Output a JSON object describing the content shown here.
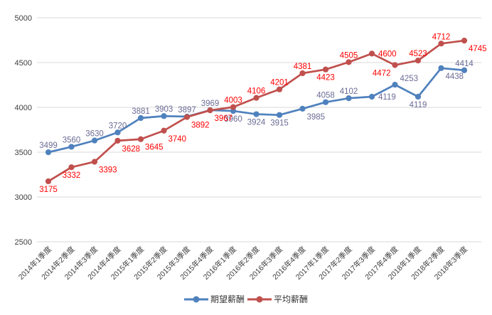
{
  "chart_data": {
    "type": "line",
    "title": "",
    "categories": [
      "2014年1季度",
      "2014年2季度",
      "2014年3季度",
      "2014年4季度",
      "2015年1季度",
      "2015年2季度",
      "2015年3季度",
      "2015年4季度",
      "2016年1季度",
      "2016年2季度",
      "2016年3季度",
      "2016年4季度",
      "2017年1季度",
      "2017年2季度",
      "2017年3季度",
      "2017年4季度",
      "2018年1季度",
      "2018年2季度",
      "2018年3季度"
    ],
    "series": [
      {
        "name": "期望薪酬",
        "color": "#4F81BD",
        "label_color": "#6B6B96",
        "values": [
          3499,
          3560,
          3630,
          3720,
          3881,
          3903,
          3897,
          3969,
          3960,
          3924,
          3915,
          3985,
          4058,
          4102,
          4119,
          4253,
          4119,
          4438,
          4414
        ],
        "label_pos": [
          "above",
          "above",
          "above",
          "above",
          "above",
          "above",
          "above",
          "above",
          "below",
          "below",
          "below",
          "below-right",
          "above",
          "above",
          "right",
          "above-right",
          "below",
          "below-right",
          "above"
        ]
      },
      {
        "name": "平均薪酬",
        "color": "#C0504D",
        "label_color": "#FF0000",
        "values": [
          3175,
          3332,
          3393,
          3628,
          3645,
          3740,
          3892,
          3967,
          4003,
          4106,
          4201,
          4381,
          4423,
          4505,
          4600,
          4472,
          4523,
          4712,
          4745
        ],
        "label_pos": [
          "below",
          "below",
          "below-right",
          "below-right",
          "below-right",
          "below-right",
          "below-right",
          "below-right",
          "above",
          "above",
          "above",
          "above",
          "below",
          "above",
          "right",
          "below-left",
          "above",
          "above",
          "below-right"
        ]
      }
    ],
    "xlabel": "",
    "ylabel": "",
    "ylim": [
      2500,
      5000
    ],
    "yticks": [
      2500,
      3000,
      3500,
      4000,
      4500,
      5000
    ],
    "grid": true,
    "legend_position": "bottom",
    "axis_text_color": "#404040",
    "gridline_color": "#D9D9D9",
    "background": "#FFFFFF"
  }
}
